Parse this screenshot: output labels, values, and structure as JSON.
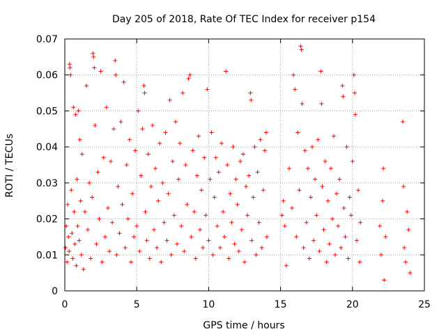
{
  "chart_data": {
    "type": "scatter",
    "title": "Day 205 of 2018, Rate Of TEC Index for receiver p154",
    "xlabel": "GPS time / hours",
    "ylabel": "ROTI / TECUs",
    "xlim": [
      0,
      25
    ],
    "ylim": [
      0,
      0.07
    ],
    "x_ticks": [
      0,
      5,
      10,
      15,
      20,
      25
    ],
    "x_tick_labels": [
      "0",
      "5",
      "10",
      "15",
      "20",
      "25"
    ],
    "y_ticks": [
      0,
      0.01,
      0.02,
      0.03,
      0.04,
      0.05,
      0.06,
      0.07
    ],
    "y_tick_labels": [
      "0",
      "0.01",
      "0.02",
      "0.03",
      "0.04",
      "0.05",
      "0.06",
      "0.07"
    ],
    "grid": true,
    "marker": "+",
    "color": "#ff0000",
    "coverage_gaps_hours": [
      [
        14.1,
        15.0
      ],
      [
        20.6,
        21.8
      ],
      [
        22.4,
        23.4
      ]
    ],
    "series": [
      {
        "name": "ROTI",
        "points": [
          [
            0.05,
            0.012
          ],
          [
            0.1,
            0.018
          ],
          [
            0.15,
            0.008
          ],
          [
            0.2,
            0.024
          ],
          [
            0.25,
            0.015
          ],
          [
            0.3,
            0.011
          ],
          [
            0.33,
            0.063
          ],
          [
            0.36,
            0.062
          ],
          [
            0.4,
            0.06
          ],
          [
            0.45,
            0.028
          ],
          [
            0.5,
            0.016
          ],
          [
            0.55,
            0.009
          ],
          [
            0.6,
            0.051
          ],
          [
            0.65,
            0.022
          ],
          [
            0.7,
            0.013
          ],
          [
            0.75,
            0.049
          ],
          [
            0.8,
            0.007
          ],
          [
            0.85,
            0.031
          ],
          [
            0.9,
            0.018
          ],
          [
            0.95,
            0.05
          ],
          [
            1.0,
            0.014
          ],
          [
            1.05,
            0.042
          ],
          [
            1.1,
            0.025
          ],
          [
            1.15,
            0.01
          ],
          [
            1.2,
            0.038
          ],
          [
            1.3,
            0.006
          ],
          [
            1.4,
            0.022
          ],
          [
            1.5,
            0.057
          ],
          [
            1.6,
            0.017
          ],
          [
            1.7,
            0.03
          ],
          [
            1.8,
            0.009
          ],
          [
            1.9,
            0.026
          ],
          [
            1.96,
            0.066
          ],
          [
            2.0,
            0.065
          ],
          [
            2.05,
            0.062
          ],
          [
            2.1,
            0.046
          ],
          [
            2.2,
            0.013
          ],
          [
            2.3,
            0.033
          ],
          [
            2.4,
            0.02
          ],
          [
            2.5,
            0.061
          ],
          [
            2.6,
            0.008
          ],
          [
            2.7,
            0.037
          ],
          [
            2.8,
            0.015
          ],
          [
            2.9,
            0.051
          ],
          [
            3.0,
            0.023
          ],
          [
            3.1,
            0.011
          ],
          [
            3.2,
            0.036
          ],
          [
            3.3,
            0.019
          ],
          [
            3.4,
            0.045
          ],
          [
            3.5,
            0.064
          ],
          [
            3.55,
            0.06
          ],
          [
            3.6,
            0.01
          ],
          [
            3.7,
            0.029
          ],
          [
            3.8,
            0.016
          ],
          [
            3.9,
            0.047
          ],
          [
            4.0,
            0.024
          ],
          [
            4.1,
            0.058
          ],
          [
            4.2,
            0.012
          ],
          [
            4.3,
            0.035
          ],
          [
            4.4,
            0.02
          ],
          [
            4.5,
            0.042
          ],
          [
            4.6,
            0.008
          ],
          [
            4.7,
            0.027
          ],
          [
            4.8,
            0.015
          ],
          [
            4.9,
            0.039
          ],
          [
            5.0,
            0.018
          ],
          [
            5.1,
            0.05
          ],
          [
            5.2,
            0.011
          ],
          [
            5.3,
            0.032
          ],
          [
            5.4,
            0.045
          ],
          [
            5.5,
            0.057
          ],
          [
            5.55,
            0.055
          ],
          [
            5.6,
            0.022
          ],
          [
            5.7,
            0.014
          ],
          [
            5.8,
            0.038
          ],
          [
            5.9,
            0.009
          ],
          [
            6.0,
            0.029
          ],
          [
            6.1,
            0.046
          ],
          [
            6.2,
            0.017
          ],
          [
            6.3,
            0.034
          ],
          [
            6.4,
            0.012
          ],
          [
            6.5,
            0.025
          ],
          [
            6.6,
            0.041
          ],
          [
            6.7,
            0.008
          ],
          [
            6.8,
            0.03
          ],
          [
            6.9,
            0.019
          ],
          [
            7.0,
            0.044
          ],
          [
            7.1,
            0.014
          ],
          [
            7.2,
            0.027
          ],
          [
            7.3,
            0.053
          ],
          [
            7.4,
            0.01
          ],
          [
            7.5,
            0.036
          ],
          [
            7.6,
            0.021
          ],
          [
            7.7,
            0.047
          ],
          [
            7.8,
            0.013
          ],
          [
            7.9,
            0.031
          ],
          [
            8.0,
            0.041
          ],
          [
            8.1,
            0.018
          ],
          [
            8.2,
            0.055
          ],
          [
            8.3,
            0.011
          ],
          [
            8.4,
            0.035
          ],
          [
            8.5,
            0.024
          ],
          [
            8.6,
            0.059
          ],
          [
            8.7,
            0.06
          ],
          [
            8.8,
            0.015
          ],
          [
            8.9,
            0.039
          ],
          [
            9.0,
            0.022
          ],
          [
            9.1,
            0.009
          ],
          [
            9.2,
            0.032
          ],
          [
            9.3,
            0.043
          ],
          [
            9.4,
            0.017
          ],
          [
            9.5,
            0.028
          ],
          [
            9.6,
            0.012
          ],
          [
            9.7,
            0.037
          ],
          [
            9.8,
            0.021
          ],
          [
            9.9,
            0.056
          ],
          [
            10.0,
            0.014
          ],
          [
            10.1,
            0.031
          ],
          [
            10.2,
            0.044
          ],
          [
            10.3,
            0.01
          ],
          [
            10.4,
            0.026
          ],
          [
            10.5,
            0.037
          ],
          [
            10.6,
            0.018
          ],
          [
            10.7,
            0.033
          ],
          [
            10.8,
            0.012
          ],
          [
            10.9,
            0.041
          ],
          [
            11.0,
            0.022
          ],
          [
            11.1,
            0.015
          ],
          [
            11.2,
            0.061
          ],
          [
            11.3,
            0.035
          ],
          [
            11.4,
            0.009
          ],
          [
            11.5,
            0.027
          ],
          [
            11.6,
            0.019
          ],
          [
            11.7,
            0.04
          ],
          [
            11.8,
            0.013
          ],
          [
            11.9,
            0.031
          ],
          [
            12.0,
            0.024
          ],
          [
            12.1,
            0.011
          ],
          [
            12.2,
            0.036
          ],
          [
            12.3,
            0.017
          ],
          [
            12.4,
            0.038
          ],
          [
            12.5,
            0.008
          ],
          [
            12.6,
            0.029
          ],
          [
            12.7,
            0.021
          ],
          [
            12.8,
            0.032
          ],
          [
            12.9,
            0.055
          ],
          [
            12.95,
            0.053
          ],
          [
            13.0,
            0.014
          ],
          [
            13.1,
            0.026
          ],
          [
            13.2,
            0.04
          ],
          [
            13.3,
            0.01
          ],
          [
            13.4,
            0.033
          ],
          [
            13.5,
            0.019
          ],
          [
            13.6,
            0.042
          ],
          [
            13.7,
            0.012
          ],
          [
            13.8,
            0.028
          ],
          [
            13.9,
            0.039
          ],
          [
            14.0,
            0.044
          ],
          [
            14.05,
            0.015
          ],
          [
            15.1,
            0.021
          ],
          [
            15.2,
            0.025
          ],
          [
            15.3,
            0.018
          ],
          [
            15.4,
            0.007
          ],
          [
            15.6,
            0.034
          ],
          [
            15.8,
            0.023
          ],
          [
            15.9,
            0.06
          ],
          [
            16.0,
            0.056
          ],
          [
            16.1,
            0.015
          ],
          [
            16.2,
            0.044
          ],
          [
            16.3,
            0.028
          ],
          [
            16.4,
            0.068
          ],
          [
            16.45,
            0.067
          ],
          [
            16.5,
            0.052
          ],
          [
            16.6,
            0.012
          ],
          [
            16.7,
            0.039
          ],
          [
            16.8,
            0.019
          ],
          [
            16.9,
            0.034
          ],
          [
            17.0,
            0.009
          ],
          [
            17.1,
            0.026
          ],
          [
            17.2,
            0.04
          ],
          [
            17.3,
            0.014
          ],
          [
            17.4,
            0.031
          ],
          [
            17.5,
            0.021
          ],
          [
            17.6,
            0.042
          ],
          [
            17.7,
            0.011
          ],
          [
            17.8,
            0.061
          ],
          [
            17.85,
            0.052
          ],
          [
            17.9,
            0.029
          ],
          [
            18.0,
            0.017
          ],
          [
            18.1,
            0.036
          ],
          [
            18.2,
            0.008
          ],
          [
            18.3,
            0.025
          ],
          [
            18.4,
            0.013
          ],
          [
            18.5,
            0.034
          ],
          [
            18.6,
            0.02
          ],
          [
            18.7,
            0.043
          ],
          [
            18.8,
            0.01
          ],
          [
            18.9,
            0.027
          ],
          [
            19.0,
            0.018
          ],
          [
            19.1,
            0.031
          ],
          [
            19.2,
            0.012
          ],
          [
            19.3,
            0.057
          ],
          [
            19.35,
            0.054
          ],
          [
            19.4,
            0.023
          ],
          [
            19.5,
            0.015
          ],
          [
            19.6,
            0.04
          ],
          [
            19.7,
            0.009
          ],
          [
            19.8,
            0.026
          ],
          [
            19.9,
            0.021
          ],
          [
            20.0,
            0.036
          ],
          [
            20.1,
            0.06
          ],
          [
            20.15,
            0.055
          ],
          [
            20.2,
            0.049
          ],
          [
            20.3,
            0.014
          ],
          [
            20.4,
            0.028
          ],
          [
            20.5,
            0.008
          ],
          [
            20.55,
            0.019
          ],
          [
            21.9,
            0.018
          ],
          [
            22.0,
            0.01
          ],
          [
            22.1,
            0.025
          ],
          [
            22.15,
            0.034
          ],
          [
            22.2,
            0.003
          ],
          [
            22.3,
            0.015
          ],
          [
            23.5,
            0.047
          ],
          [
            23.55,
            0.029
          ],
          [
            23.6,
            0.012
          ],
          [
            23.7,
            0.008
          ],
          [
            23.8,
            0.022
          ],
          [
            23.9,
            0.017
          ],
          [
            24.0,
            0.005
          ]
        ]
      }
    ]
  }
}
